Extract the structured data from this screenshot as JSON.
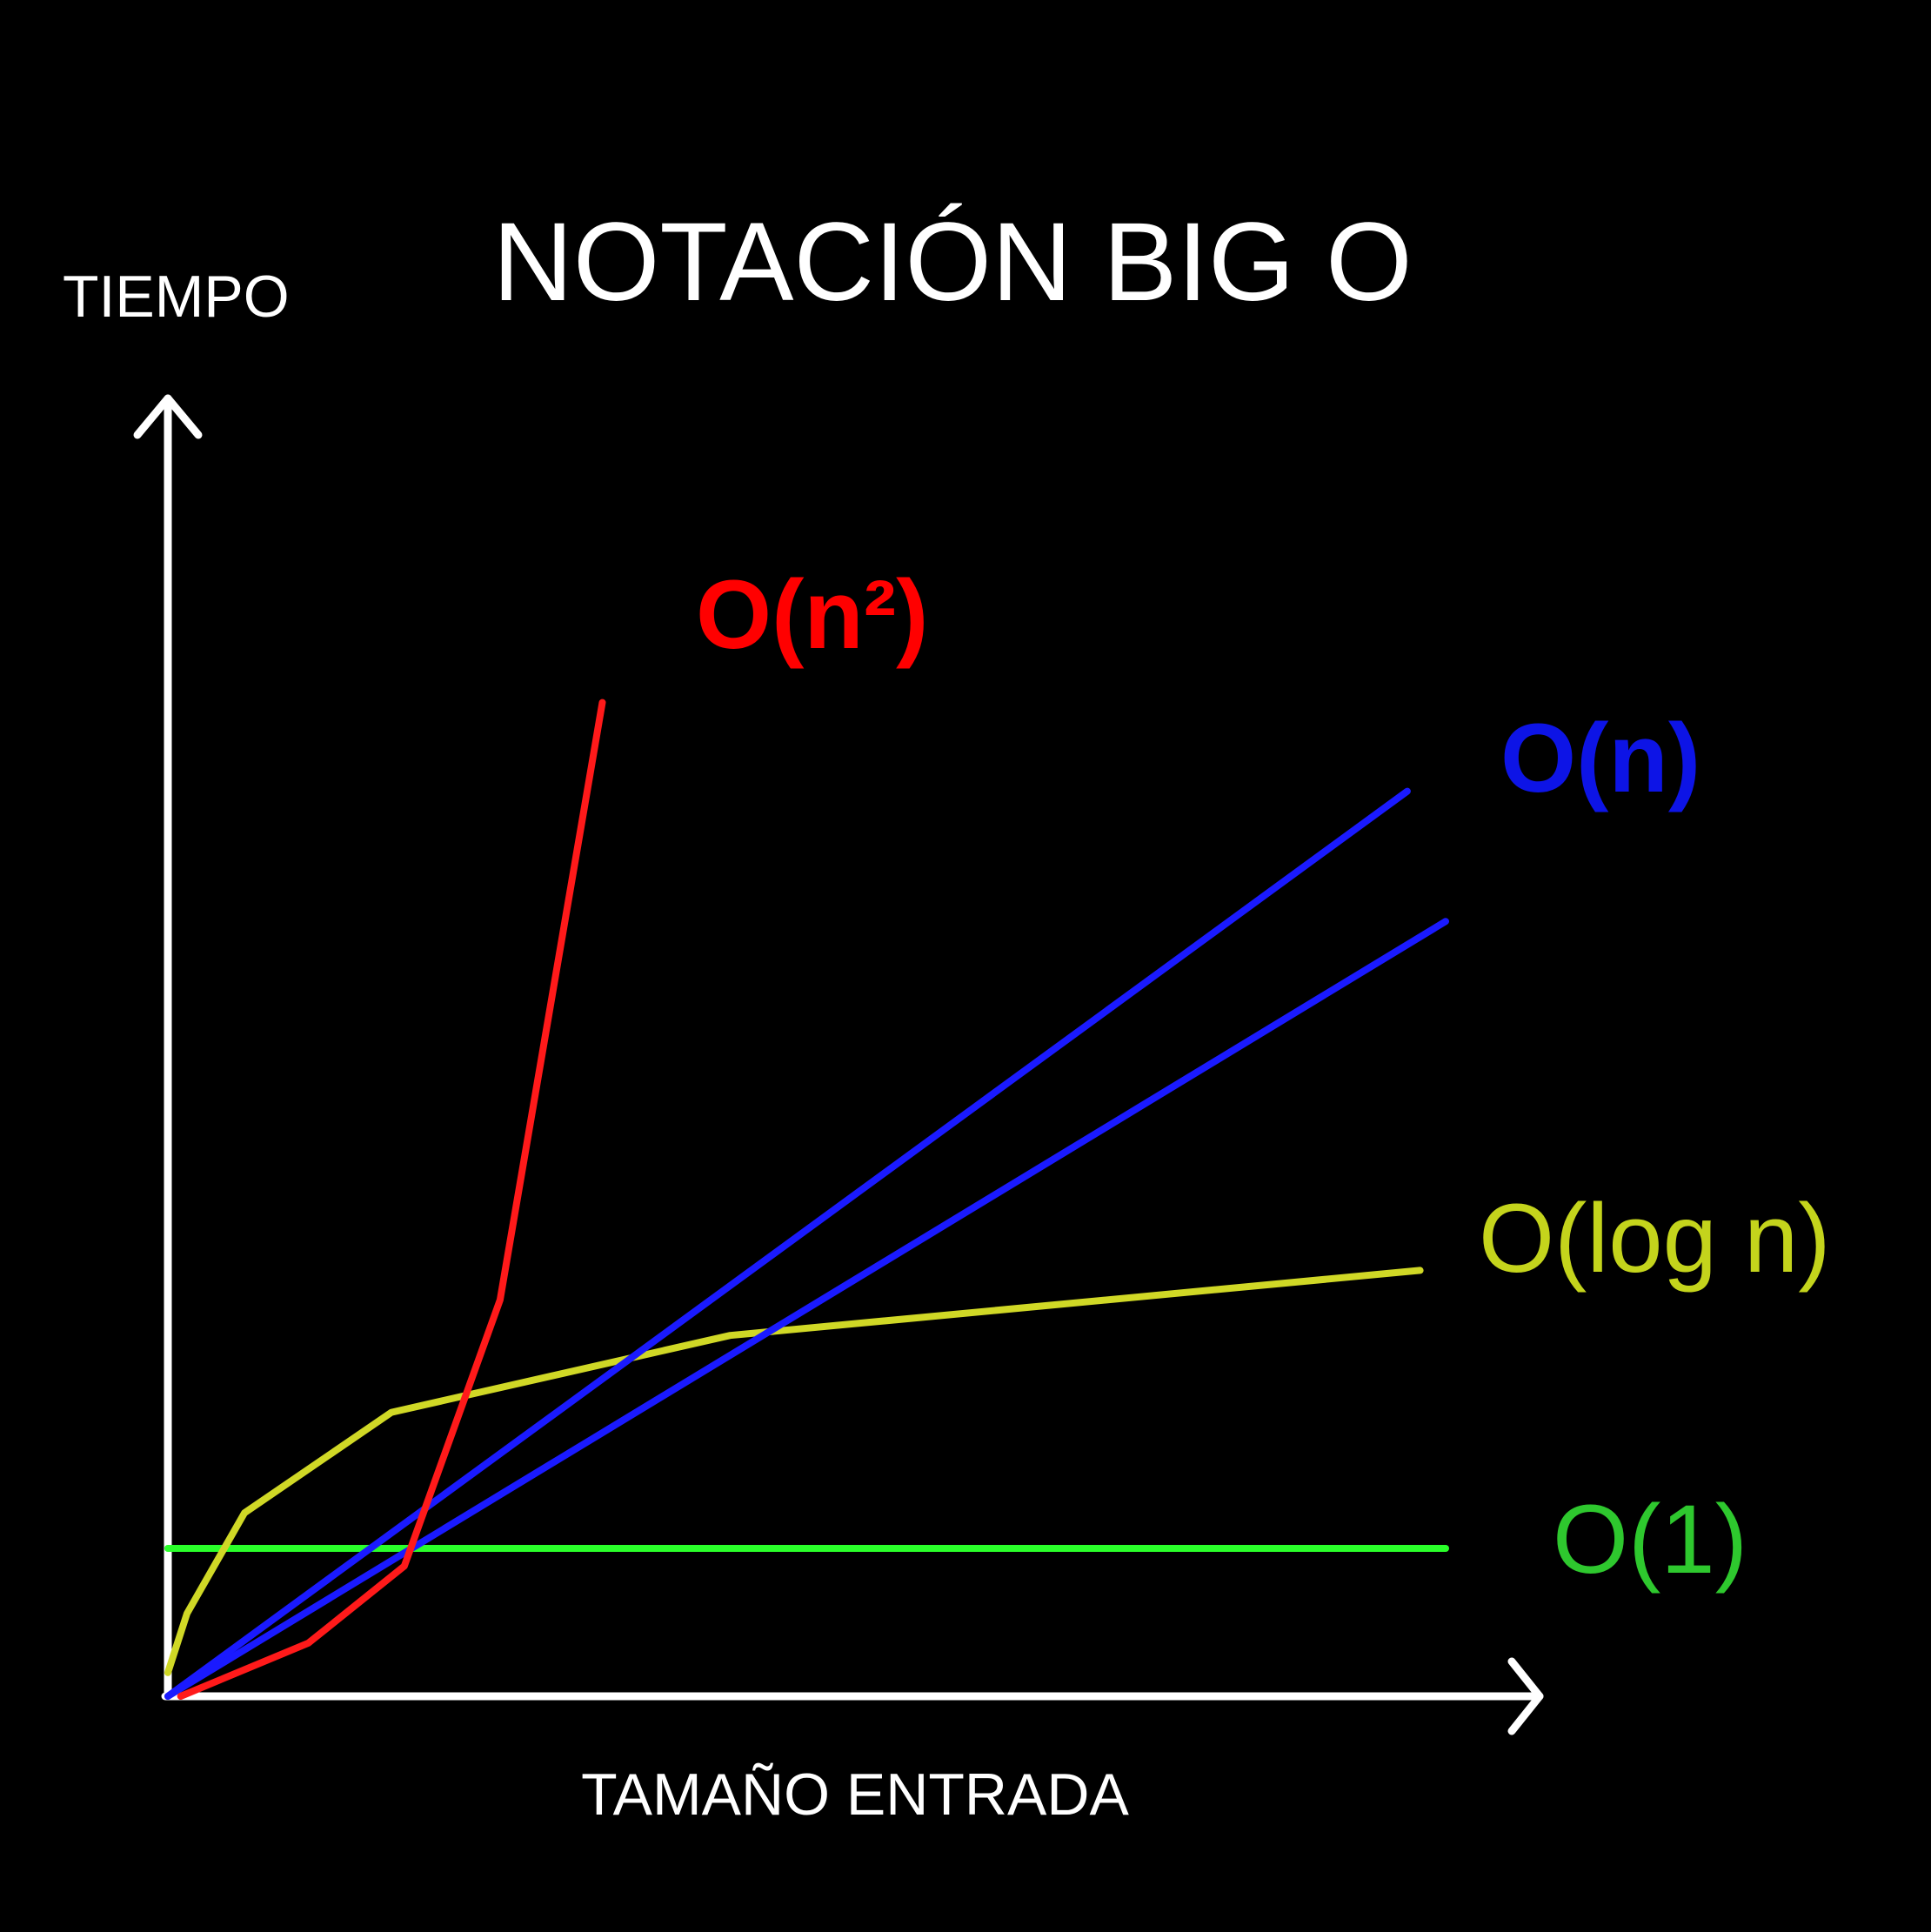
{
  "chart_data": {
    "type": "line",
    "title": "NOTACIÓN BIG O",
    "xlabel": "TAMAÑO ENTRADA",
    "ylabel": "TIEMPO",
    "grid": false,
    "legend": "inline-right",
    "xlim": [
      0,
      100
    ],
    "ylim": [
      0,
      100
    ],
    "colors": {
      "background": "#000000",
      "axes": "#ffffff",
      "title": "#ffffff"
    },
    "series": [
      {
        "label": "O(1)",
        "color": "#2aff2a",
        "label_color": "#2ec82e",
        "label_bold": false,
        "points": [
          [
            0,
            12.5
          ],
          [
            100,
            12.5
          ]
        ]
      },
      {
        "label": "O(log n)",
        "color": "#d0d826",
        "label_color": "#c4d41c",
        "label_bold": false,
        "points": [
          [
            0,
            2
          ],
          [
            1.5,
            7
          ],
          [
            6,
            15.5
          ],
          [
            17.5,
            24
          ],
          [
            44,
            30.5
          ],
          [
            98,
            36
          ]
        ]
      },
      {
        "label": "O(n)",
        "color": "#1a1aff",
        "label_color": "#0d14e6",
        "label_bold": true,
        "points": [
          [
            0,
            0
          ],
          [
            97,
            76.5
          ]
        ]
      },
      {
        "label": "",
        "color": "#1a1aff",
        "points": [
          [
            0,
            0
          ],
          [
            100,
            65.5
          ]
        ]
      },
      {
        "label": "O(n²)",
        "color": "#ff1a1a",
        "label_color": "#ff0000",
        "label_bold": true,
        "points": [
          [
            1,
            0
          ],
          [
            11,
            4.5
          ],
          [
            18.5,
            11
          ],
          [
            26,
            33.5
          ],
          [
            34,
            84
          ]
        ]
      }
    ]
  }
}
